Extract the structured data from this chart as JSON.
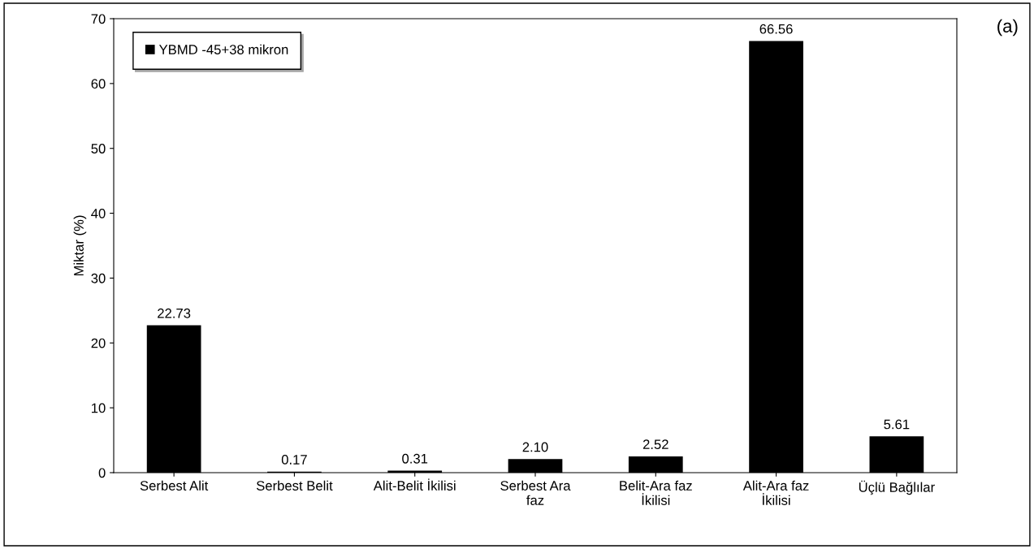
{
  "chart_data": {
    "type": "bar",
    "ylabel": "Miktar (%)",
    "annotations": [
      "(a)"
    ],
    "categories": [
      "Serbest Alit",
      "Serbest Belit",
      "Alit-Belit İkilisi",
      "Serbest Ara\nfaz",
      "Belit-Ara faz\nİkilisi",
      "Alit-Ara faz\nİkilisi",
      "Üçlü Bağlılar"
    ],
    "series": [
      {
        "name": "YBMD -45+38 mikron",
        "color": "#000000",
        "values": [
          22.73,
          0.17,
          0.31,
          2.1,
          2.52,
          66.56,
          5.61
        ],
        "value_labels": [
          "22.73",
          "0.17",
          "0.31",
          "2.10",
          "2.52",
          "66.56",
          "5.61"
        ]
      }
    ],
    "ylim": [
      0,
      70
    ],
    "yticks": [
      0,
      10,
      20,
      30,
      40,
      50,
      60,
      70
    ],
    "grid": false,
    "legend": "top left"
  }
}
